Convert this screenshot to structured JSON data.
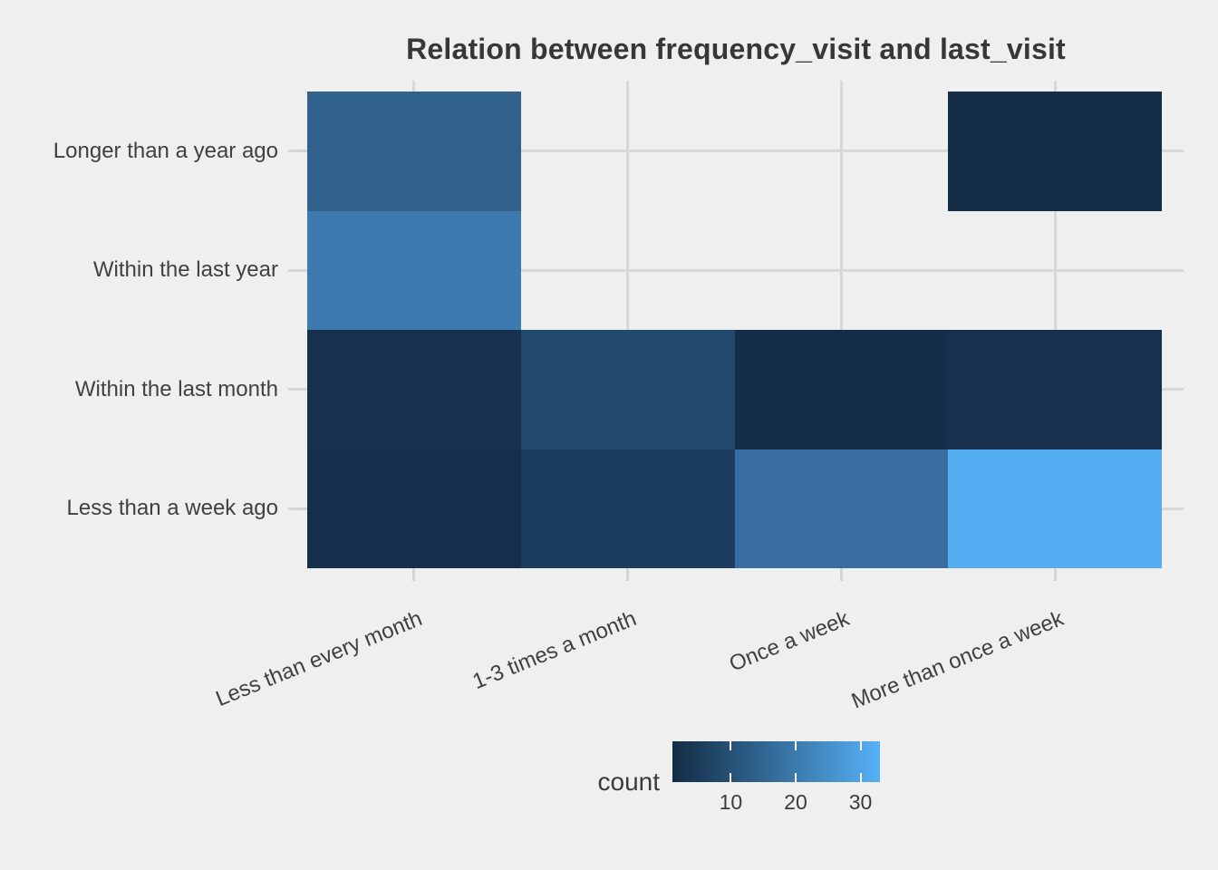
{
  "title": "Relation between frequency_visit and last_visit",
  "chart_data": {
    "type": "heatmap",
    "title": "Relation between frequency_visit and last_visit",
    "xlabel": "",
    "ylabel": "",
    "x_categories": [
      "Less than every month",
      "1-3 times a month",
      "Once a week",
      "More than once a week"
    ],
    "y_categories_top_to_bottom": [
      "Longer than a year ago",
      "Within the last year",
      "Within the last month",
      "Less than a week ago"
    ],
    "grid": "major gridlines at category centers",
    "cells": [
      {
        "x": "Less than every month",
        "y": "Longer than a year ago",
        "count": 15,
        "color": "#31628C"
      },
      {
        "x": "Less than every month",
        "y": "Within the last year",
        "count": 21,
        "color": "#3C7AB0"
      },
      {
        "x": "Less than every month",
        "y": "Within the last month",
        "count": 3,
        "color": "#16304E"
      },
      {
        "x": "Less than every month",
        "y": "Less than a week ago",
        "count": 2,
        "color": "#142E4B"
      },
      {
        "x": "1-3 times a month",
        "y": "Within the last month",
        "count": 8,
        "color": "#224A6F"
      },
      {
        "x": "1-3 times a month",
        "y": "Less than a week ago",
        "count": 6,
        "color": "#1D3D5F"
      },
      {
        "x": "Once a week",
        "y": "Within the last month",
        "count": 2,
        "color": "#142D48"
      },
      {
        "x": "Once a week",
        "y": "Less than a week ago",
        "count": 18,
        "color": "#376DA0"
      },
      {
        "x": "More than once a week",
        "y": "Longer than a year ago",
        "count": 1,
        "color": "#152C47"
      },
      {
        "x": "More than once a week",
        "y": "Within the last month",
        "count": 3,
        "color": "#16304E"
      },
      {
        "x": "More than once a week",
        "y": "Less than a week ago",
        "count": 33,
        "color": "#55ADF2"
      }
    ],
    "legend": {
      "title": "count",
      "position": "bottom",
      "orientation": "horizontal",
      "ticks": [
        10,
        20,
        30
      ],
      "min": 1,
      "max": 33,
      "gradient_start": "#132B43",
      "gradient_end": "#56B1F7"
    },
    "colors": {
      "background": "#EFEFEF",
      "gridline": "#D8D8D8",
      "axis_tick": "#D4D4D4",
      "axis_text": "#404040",
      "title_text": "#373737"
    }
  }
}
